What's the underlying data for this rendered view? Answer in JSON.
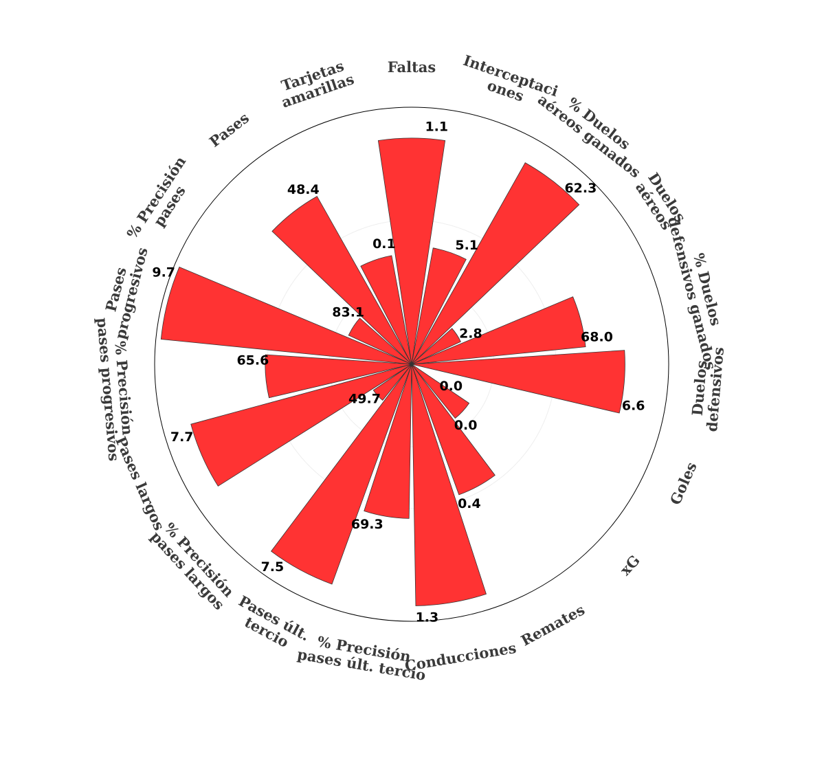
{
  "chart_data": {
    "type": "polar-bar",
    "bar_color": "#ff3333",
    "bar_edge_color": "#333333",
    "grid": true,
    "categories": [
      [
        "Faltas"
      ],
      [
        "Interceptaci",
        "ones"
      ],
      [
        "% Duelos",
        "aéreos ganados"
      ],
      [
        "Duelos",
        "aéreos"
      ],
      [
        "% Duelos",
        "defensivos ganados"
      ],
      [
        "Duelos",
        "defensivos"
      ],
      [
        "Goles"
      ],
      [
        "xG"
      ],
      [
        "Remates"
      ],
      [
        "Conducciones"
      ],
      [
        "% Precisión",
        "pases últ. tercio"
      ],
      [
        "Pases últ.",
        "tercio"
      ],
      [
        "% Precisión",
        "pases largos"
      ],
      [
        "Pases largos"
      ],
      [
        "% Precisión",
        "pases progresivos"
      ],
      [
        "Pases",
        "progresivos"
      ],
      [
        "% Precisión",
        "pases"
      ],
      [
        "Pases"
      ],
      [
        "Tarjetas",
        "amarillas"
      ]
    ],
    "value_labels": [
      "1.1",
      "5.1",
      "62.3",
      "2.8",
      "68.0",
      "6.6",
      "0.0",
      "0.0",
      "0.4",
      "1.3",
      "69.3",
      "7.5",
      "49.7",
      "7.7",
      "65.6",
      "9.7",
      "83.1",
      "48.4",
      "0.1"
    ],
    "values": [
      1.1,
      5.1,
      62.3,
      2.8,
      68.0,
      6.6,
      0.0,
      0.0,
      0.4,
      1.3,
      69.3,
      7.5,
      49.7,
      7.7,
      65.6,
      9.7,
      83.1,
      48.4,
      0.1
    ],
    "percentile_fill": [
      88,
      46,
      90,
      21,
      68,
      83,
      0,
      27,
      54,
      94,
      60,
      91,
      18,
      89,
      57,
      98,
      27,
      75,
      43
    ]
  }
}
